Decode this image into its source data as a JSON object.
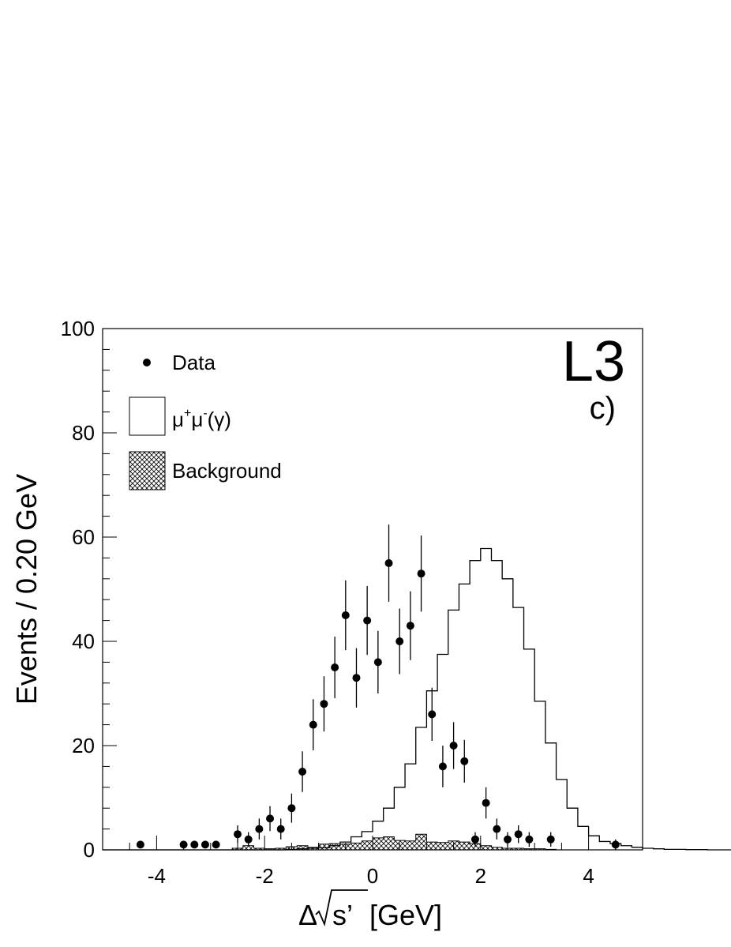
{
  "chart_data": {
    "type": "histogram",
    "experiment_label": "L3",
    "panel_label": "c)",
    "xlabel_prefix": "Δ",
    "xlabel_var": "s’",
    "xlabel_unit": " [GeV]",
    "ylabel": "Events / 0.20 GeV",
    "xlim": [
      -5,
      5
    ],
    "ylim": [
      0,
      100
    ],
    "xticks": [
      -4,
      -2,
      0,
      2,
      4
    ],
    "xtick_labels": [
      "-4",
      "-2",
      "0",
      "2",
      "4"
    ],
    "yticks": [
      0,
      20,
      40,
      60,
      80,
      100
    ],
    "ytick_labels": [
      "0",
      "20",
      "40",
      "60",
      "80",
      "100"
    ],
    "legend": {
      "placement": "top-left",
      "entries": [
        {
          "label": "Data",
          "style": "marker"
        },
        {
          "label_base1": "μ",
          "label_sup1": "+",
          "label_base2": "μ",
          "label_sup2": "-",
          "label_tail": "(γ)",
          "style": "open-box"
        },
        {
          "label": "Background",
          "style": "hatched-box"
        }
      ]
    },
    "bin_width": 0.2,
    "mc_signal": {
      "name": "μ+μ-(γ)",
      "bin_edges_start": -5.0,
      "values": [
        0,
        0,
        0,
        0,
        0,
        0,
        0,
        0,
        0,
        0,
        0,
        0,
        0,
        0,
        0,
        0,
        0,
        0.1,
        0.2,
        0.3,
        0.4,
        0.8,
        1.5,
        2.5,
        3.5,
        5.5,
        8,
        12,
        16.5,
        23.5,
        30.5,
        37.5,
        46,
        51,
        55.5,
        57.8,
        55.5,
        52,
        46.5,
        38.5,
        28.5,
        20.5,
        13.5,
        8,
        4.5,
        2.7,
        1.6,
        1.2,
        0.8,
        0.5,
        0.3,
        0.2,
        0.1,
        0.1,
        0.05,
        0.05,
        0,
        0,
        0,
        0
      ]
    },
    "background": {
      "name": "Background",
      "bin_edges_start": -2.6,
      "values": [
        0.3,
        0.8,
        0.3,
        0.2,
        0.3,
        0.6,
        0.8,
        0.5,
        1.1,
        1.2,
        1.1,
        1.3,
        1.7,
        2.3,
        2.5,
        1.8,
        1.7,
        3.0,
        1.5,
        1.4,
        1.7,
        1.5,
        1.2,
        0.8,
        0.5,
        0.3,
        0.3,
        0.2,
        0.2,
        0.1
      ]
    },
    "data_points": [
      {
        "x": -4.3,
        "y": 1,
        "err": 0
      },
      {
        "x": -3.5,
        "y": 1,
        "err": 0
      },
      {
        "x": -3.3,
        "y": 1,
        "err": 0
      },
      {
        "x": -3.1,
        "y": 1,
        "err": 0
      },
      {
        "x": -2.9,
        "y": 1,
        "err": 0
      },
      {
        "x": -2.5,
        "y": 3,
        "err": 1.7
      },
      {
        "x": -2.3,
        "y": 2,
        "err": 1.4
      },
      {
        "x": -2.1,
        "y": 4,
        "err": 2.0
      },
      {
        "x": -1.9,
        "y": 6,
        "err": 2.4
      },
      {
        "x": -1.7,
        "y": 4,
        "err": 2.0
      },
      {
        "x": -1.5,
        "y": 8,
        "err": 2.8
      },
      {
        "x": -1.3,
        "y": 15,
        "err": 3.9
      },
      {
        "x": -1.1,
        "y": 24,
        "err": 4.9
      },
      {
        "x": -0.9,
        "y": 28,
        "err": 5.3
      },
      {
        "x": -0.7,
        "y": 35,
        "err": 5.9
      },
      {
        "x": -0.5,
        "y": 45,
        "err": 6.7
      },
      {
        "x": -0.3,
        "y": 33,
        "err": 5.7
      },
      {
        "x": -0.1,
        "y": 44,
        "err": 6.6
      },
      {
        "x": 0.1,
        "y": 36,
        "err": 6.0
      },
      {
        "x": 0.3,
        "y": 55,
        "err": 7.4
      },
      {
        "x": 0.5,
        "y": 40,
        "err": 6.3
      },
      {
        "x": 0.7,
        "y": 43,
        "err": 6.6
      },
      {
        "x": 0.9,
        "y": 53,
        "err": 7.3
      },
      {
        "x": 1.1,
        "y": 26,
        "err": 5.1
      },
      {
        "x": 1.3,
        "y": 16,
        "err": 4.0
      },
      {
        "x": 1.5,
        "y": 20,
        "err": 4.5
      },
      {
        "x": 1.7,
        "y": 17,
        "err": 4.1
      },
      {
        "x": 1.9,
        "y": 2,
        "err": 1.4
      },
      {
        "x": 2.1,
        "y": 9,
        "err": 3.0
      },
      {
        "x": 2.3,
        "y": 4,
        "err": 2.0
      },
      {
        "x": 2.5,
        "y": 2,
        "err": 1.4
      },
      {
        "x": 2.7,
        "y": 3,
        "err": 1.7
      },
      {
        "x": 2.9,
        "y": 2,
        "err": 1.4
      },
      {
        "x": 3.3,
        "y": 2,
        "err": 1.4
      },
      {
        "x": 4.5,
        "y": 1,
        "err": 1.0
      }
    ]
  }
}
